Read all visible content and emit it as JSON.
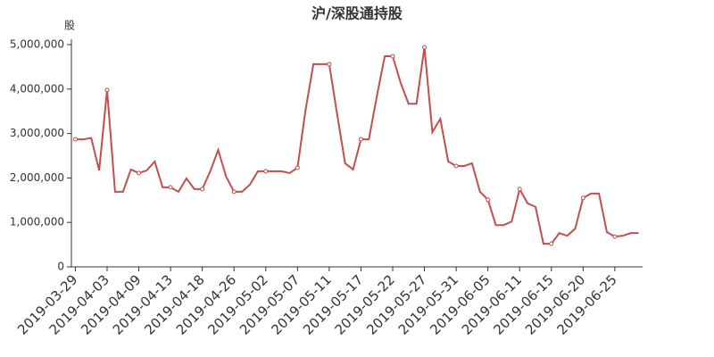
{
  "chart_data": {
    "type": "line",
    "title": "沪/深股通持股",
    "y_axis_label": "股",
    "categories": [
      "2019-03-29",
      null,
      null,
      null,
      "2019-04-03",
      null,
      null,
      null,
      "2019-04-09",
      null,
      null,
      null,
      "2019-04-13",
      null,
      null,
      null,
      "2019-04-18",
      null,
      null,
      null,
      "2019-04-26",
      null,
      null,
      null,
      "2019-05-02",
      null,
      null,
      null,
      "2019-05-07",
      null,
      null,
      null,
      "2019-05-11",
      null,
      null,
      null,
      "2019-05-17",
      null,
      null,
      null,
      "2019-05-22",
      null,
      null,
      null,
      "2019-05-27",
      null,
      null,
      null,
      "2019-05-31",
      null,
      null,
      null,
      "2019-06-05",
      null,
      null,
      null,
      "2019-06-11",
      null,
      null,
      null,
      "2019-06-15",
      null,
      null,
      null,
      "2019-06-20",
      null,
      null,
      null,
      "2019-06-25",
      null,
      null,
      null
    ],
    "series": [
      {
        "color": "#c0504d",
        "values": [
          2870000,
          2870000,
          2900000,
          2170000,
          3980000,
          1690000,
          1690000,
          2190000,
          2110000,
          2170000,
          2370000,
          1790000,
          1790000,
          1690000,
          1990000,
          1750000,
          1750000,
          2150000,
          2630000,
          2030000,
          1690000,
          1690000,
          1850000,
          2150000,
          2150000,
          2150000,
          2150000,
          2110000,
          2230000,
          3510000,
          4560000,
          4560000,
          4560000,
          3430000,
          2330000,
          2190000,
          2870000,
          2870000,
          3840000,
          4740000,
          4740000,
          4140000,
          3670000,
          3670000,
          4940000,
          3030000,
          3330000,
          2370000,
          2270000,
          2270000,
          2330000,
          1690000,
          1510000,
          940000,
          940000,
          1020000,
          1750000,
          1430000,
          1350000,
          520000,
          520000,
          760000,
          700000,
          860000,
          1550000,
          1650000,
          1650000,
          780000,
          680000,
          700000,
          760000,
          760000
        ]
      }
    ],
    "ylim": [
      0,
      5000000
    ],
    "yticks": [
      0,
      {
        "value": 1000000,
        "label": "1,000,000"
      },
      {
        "value": 2000000,
        "label": "2,000,000"
      },
      {
        "value": 3000000,
        "label": "3,000,000"
      },
      {
        "value": 4000000,
        "label": "4,000,000"
      },
      {
        "value": 5000000,
        "label": "5,000,000"
      }
    ],
    "grid": false
  }
}
